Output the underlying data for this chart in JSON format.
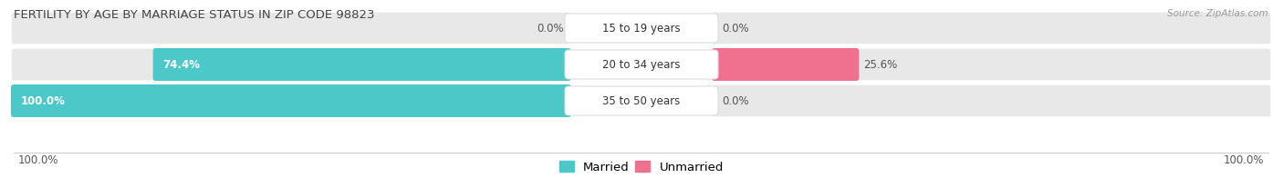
{
  "title": "FERTILITY BY AGE BY MARRIAGE STATUS IN ZIP CODE 98823",
  "source": "Source: ZipAtlas.com",
  "rows": [
    {
      "label": "15 to 19 years",
      "married": 0.0,
      "unmarried": 0.0
    },
    {
      "label": "20 to 34 years",
      "married": 74.4,
      "unmarried": 25.6
    },
    {
      "label": "35 to 50 years",
      "married": 100.0,
      "unmarried": 0.0
    }
  ],
  "x_axis_left_label": "100.0%",
  "x_axis_right_label": "100.0%",
  "married_color": "#4dc8c8",
  "unmarried_color": "#f07090",
  "unmarried_color_light": "#f4a0b8",
  "bar_bg_color": "#e8e8e8",
  "bar_bg_color2": "#f0f0f0",
  "max_val": 100.0,
  "title_fontsize": 9.5,
  "label_fontsize": 8.5,
  "value_fontsize": 8.5,
  "axis_label_fontsize": 8.5,
  "legend_fontsize": 9.5
}
